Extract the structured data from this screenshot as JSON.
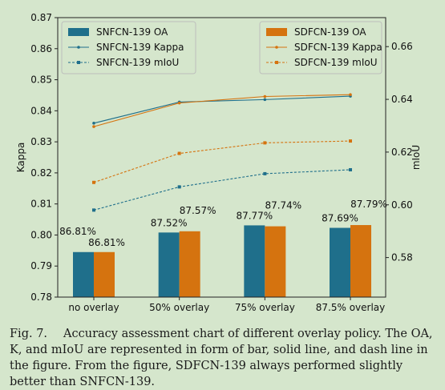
{
  "chart_data": {
    "type": "bar",
    "categories": [
      "no overlay",
      "50% overlay",
      "75% overlay",
      "87.5% overlay"
    ],
    "ylabel": "Kappa",
    "ylim": [
      0.78,
      0.87
    ],
    "y_ticks": [
      "0.78",
      "0.79",
      "0.80",
      "0.81",
      "0.82",
      "0.83",
      "0.84",
      "0.85",
      "0.86",
      "0.87"
    ],
    "y2label": "mIoU",
    "y2lim": [
      0.565,
      0.671
    ],
    "y2_ticks": [
      "0.58",
      "0.60",
      "0.62",
      "0.64",
      "0.66"
    ],
    "bar_axis": "left",
    "legend_left": "top-left",
    "legend_right": "top-right",
    "series": [
      {
        "name": "SNFCN-139 OA",
        "kind": "bar",
        "color": "#1f6f8b",
        "values": [
          0.7945,
          0.8008,
          0.8031,
          0.8023
        ],
        "labels": [
          "86.81%",
          "87.52%",
          "87.77%",
          "87.69%"
        ]
      },
      {
        "name": "SDFCN-139 OA",
        "kind": "bar",
        "color": "#d5730f",
        "values": [
          0.7945,
          0.8012,
          0.8028,
          0.8032
        ],
        "labels": [
          "86.81%",
          "87.57%",
          "87.74%",
          "87.79%"
        ]
      },
      {
        "name": "SNFCN-139 Kappa",
        "kind": "line",
        "axis": "left",
        "color": "#1f6f8b",
        "values": [
          0.836,
          0.8428,
          0.8436,
          0.8447
        ]
      },
      {
        "name": "SDFCN-139 Kappa",
        "kind": "line",
        "axis": "left",
        "color": "#d5730f",
        "values": [
          0.8349,
          0.8425,
          0.8446,
          0.8452
        ]
      },
      {
        "name": "SNFCN-139 mIoU",
        "kind": "dash",
        "axis": "right",
        "color": "#1f6f8b",
        "values": [
          0.598,
          0.6068,
          0.6118,
          0.6133
        ]
      },
      {
        "name": "SDFCN-139 mIoU",
        "kind": "dash",
        "axis": "right",
        "color": "#d5730f",
        "values": [
          0.6085,
          0.6195,
          0.6235,
          0.6242
        ]
      }
    ]
  },
  "caption": {
    "label": "Fig. 7.",
    "text": "Accuracy assessment chart of different overlay policy. The OA, K, and mIoU are represented in form of bar, solid line, and dash line in the figure. From the figure, SDFCN-139 always performed slightly better than SNFCN-139."
  }
}
